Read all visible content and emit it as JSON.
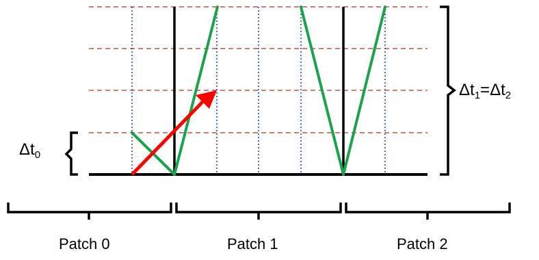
{
  "diagram": {
    "colors": {
      "background": "#ffffff",
      "structure": "#000000",
      "time_level": "#c0504d",
      "cell_boundary": "#1f3f8f",
      "characteristic": "#1aa34a",
      "arrow": "#ff0000"
    },
    "labels": {
      "dt0_symbol": "Δt",
      "dt0_sub": "0",
      "dt12_symbol": "Δt",
      "dt12_sub1": "1",
      "dt12_eq": "=",
      "dt12_symbol2": "Δt",
      "dt12_sub2": "2"
    },
    "patches": [
      {
        "label": "Patch 0"
      },
      {
        "label": "Patch 1"
      },
      {
        "label": "Patch 2"
      }
    ]
  }
}
